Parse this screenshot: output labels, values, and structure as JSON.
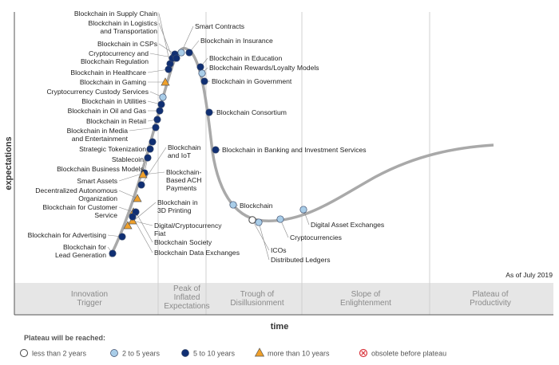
{
  "axes": {
    "y_label": "expectations",
    "x_label": "time"
  },
  "phases": [
    {
      "id": "innovation",
      "lines": [
        "Innovation",
        "Trigger"
      ]
    },
    {
      "id": "peak",
      "lines": [
        "Peak of",
        "Inflated",
        "Expectations"
      ]
    },
    {
      "id": "trough",
      "lines": [
        "Trough of",
        "Disillusionment"
      ]
    },
    {
      "id": "slope",
      "lines": [
        "Slope of",
        "Enlightenment"
      ]
    },
    {
      "id": "plateau",
      "lines": [
        "Plateau of",
        "Productivity"
      ]
    }
  ],
  "as_of": "As of July 2019",
  "legend": {
    "title": "Plateau will be reached:",
    "items": [
      {
        "key": "lt2",
        "label": "less than 2 years"
      },
      {
        "key": "2to5",
        "label": "2 to 5 years"
      },
      {
        "key": "5to10",
        "label": "5 to 10 years"
      },
      {
        "key": "gt10",
        "label": "more than 10 years"
      },
      {
        "key": "obsolete",
        "label": "obsolete before plateau"
      }
    ]
  },
  "colors": {
    "curve": "#a9a9a9",
    "lt2": "#ffffff",
    "2to5": "#a9cde8",
    "5to10": "#102f73",
    "gt10": "#f0a02a",
    "obsolete": "#d9363e",
    "band": "#e6e6e6"
  },
  "technologies": [
    {
      "name": "Blockchain in Supply Chain",
      "cat": "5to10"
    },
    {
      "name": "Blockchain in Logistics and Transportation",
      "cat": "5to10"
    },
    {
      "name": "Blockchain in CSPs",
      "cat": "5to10"
    },
    {
      "name": "Cryptocurrency and Blockchain Regulation",
      "cat": "5to10"
    },
    {
      "name": "Blockchain in Healthcare",
      "cat": "5to10"
    },
    {
      "name": "Blockchain in Gaming",
      "cat": "gt10"
    },
    {
      "name": "Cryptocurrency Custody Services",
      "cat": "2to5"
    },
    {
      "name": "Blockchain in Utilities",
      "cat": "5to10"
    },
    {
      "name": "Blockchain in Oil and Gas",
      "cat": "5to10"
    },
    {
      "name": "Blockchain in Retail",
      "cat": "5to10"
    },
    {
      "name": "Blockchain in Media and Entertainment",
      "cat": "5to10"
    },
    {
      "name": "Strategic Tokenization",
      "cat": "5to10"
    },
    {
      "name": "Stablecoin",
      "cat": "5to10"
    },
    {
      "name": "Blockchain Business Models",
      "cat": "5to10"
    },
    {
      "name": "Smart Assets",
      "cat": "5to10"
    },
    {
      "name": "Decentralized Autonomous Organization",
      "cat": "gt10"
    },
    {
      "name": "Blockchain for Customer Service",
      "cat": "gt10"
    },
    {
      "name": "Blockchain for Advertising",
      "cat": "5to10"
    },
    {
      "name": "Blockchain for Lead Generation",
      "cat": "5to10"
    },
    {
      "name": "Smart Contracts",
      "cat": "2to5"
    },
    {
      "name": "Blockchain in Insurance",
      "cat": "5to10"
    },
    {
      "name": "Blockchain in Education",
      "cat": "5to10"
    },
    {
      "name": "Blockchain Rewards/Loyalty Models",
      "cat": "2to5"
    },
    {
      "name": "Blockchain in Government",
      "cat": "5to10"
    },
    {
      "name": "Blockchain Consortium",
      "cat": "5to10"
    },
    {
      "name": "Blockchain in Banking and Investment Services",
      "cat": "5to10"
    },
    {
      "name": "Blockchain and IoT",
      "cat": "5to10"
    },
    {
      "name": "Blockchain-Based ACH Payments",
      "cat": "gt10"
    },
    {
      "name": "Blockchain in 3D Printing",
      "cat": "gt10"
    },
    {
      "name": "Digital/Cryptocurrency Fiat",
      "cat": "gt10"
    },
    {
      "name": "Blockchain Society",
      "cat": "5to10"
    },
    {
      "name": "Blockchain Data Exchanges",
      "cat": "5to10"
    },
    {
      "name": "Blockchain",
      "cat": "2to5"
    },
    {
      "name": "ICOs",
      "cat": "lt2"
    },
    {
      "name": "Distributed Ledgers",
      "cat": "2to5"
    },
    {
      "name": "Cryptocurrencies",
      "cat": "2to5"
    },
    {
      "name": "Digital Asset Exchanges",
      "cat": "2to5"
    }
  ]
}
